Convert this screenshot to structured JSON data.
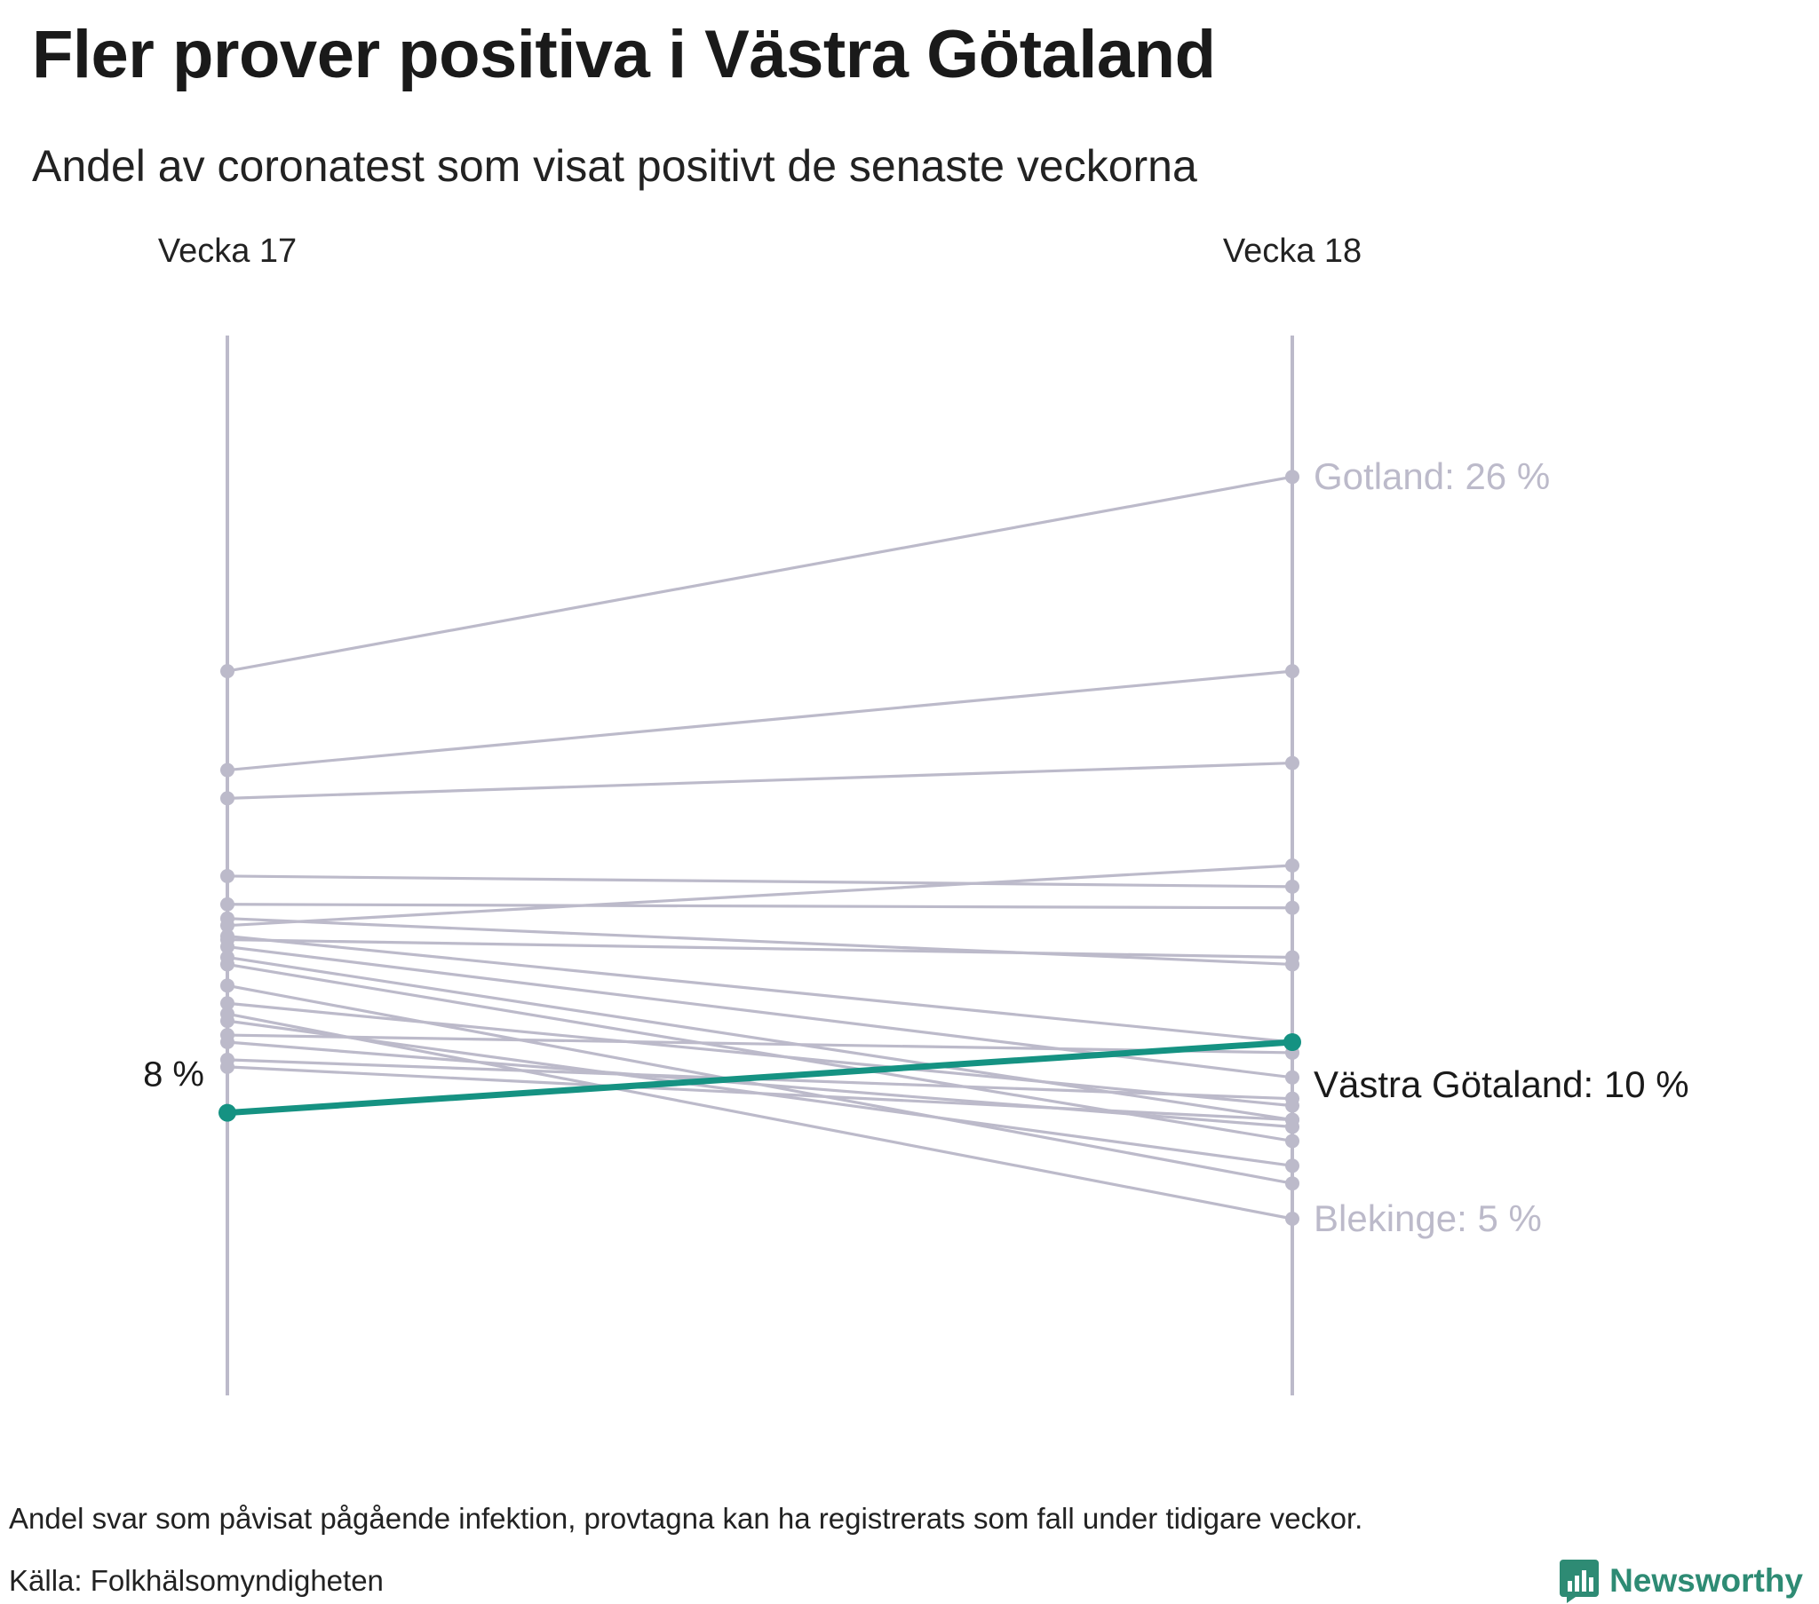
{
  "title": "Fler prover positiva i Västra Götaland",
  "subtitle": "Andel av coronatest som visat positivt de senaste veckorna",
  "footnote": "Andel svar som påvisat pågående infektion, provtagna kan ha registrerats som fall under tidigare veckor.",
  "source": "Källa: Folkhälsomyndigheten",
  "brand": {
    "name": "Newsworthy",
    "icon": "bar-chart-logo-icon",
    "color": "#2e8b74"
  },
  "colors": {
    "highlight": "#159282",
    "muted": "#bcbaca",
    "axis": "#bcbaca",
    "text": "#1a1a1a"
  },
  "chart_data": {
    "type": "slope",
    "columns": [
      "Vecka 17",
      "Vecka 18"
    ],
    "ylim": [
      0,
      30
    ],
    "unit": "%",
    "highlight_start_label": "8 %",
    "series": [
      {
        "name": "Gotland",
        "values": [
          20.5,
          26
        ],
        "label": "Gotland: 26 %"
      },
      {
        "values": [
          17.7,
          20.5
        ]
      },
      {
        "values": [
          16.9,
          17.9
        ]
      },
      {
        "values": [
          14.7,
          14.4
        ]
      },
      {
        "values": [
          13.3,
          15.0
        ]
      },
      {
        "values": [
          13.9,
          13.8
        ]
      },
      {
        "values": [
          12.9,
          12.4
        ]
      },
      {
        "values": [
          13.5,
          12.2
        ]
      },
      {
        "values": [
          13.0,
          10.0
        ]
      },
      {
        "values": [
          12.7,
          9.0
        ]
      },
      {
        "values": [
          12.4,
          7.8
        ]
      },
      {
        "values": [
          12.2,
          7.2
        ]
      },
      {
        "values": [
          11.6,
          6.0
        ]
      },
      {
        "values": [
          11.1,
          8.2
        ]
      },
      {
        "values": [
          10.0,
          7.6
        ]
      },
      {
        "values": [
          10.6,
          6.5
        ]
      },
      {
        "values": [
          9.3,
          7.8
        ]
      },
      {
        "values": [
          10.2,
          9.7
        ]
      },
      {
        "values": [
          9.5,
          8.4
        ]
      },
      {
        "name": "Blekinge",
        "values": [
          10.8,
          5.0
        ],
        "label": "Blekinge: 5 %"
      },
      {
        "name": "Västra Götaland",
        "values": [
          8.0,
          10.0
        ],
        "label": "Västra Götaland: 10 %",
        "highlight": true
      }
    ]
  }
}
